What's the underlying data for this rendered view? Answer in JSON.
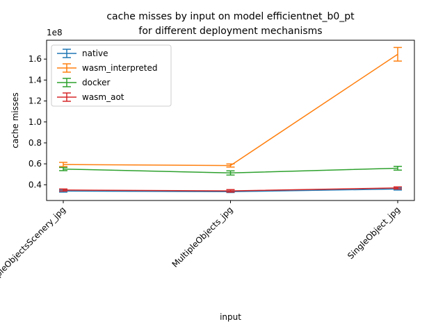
{
  "chart_data": {
    "type": "line",
    "title_line1": "cache misses by input on model efficientnet_b0_pt",
    "title_line2": "for different deployment mechanisms",
    "xlabel": "input",
    "ylabel": "cache misses",
    "scale_label": "1e8",
    "categories": [
      "MultipleObjectsScenery_jpg",
      "MultipleObjects_jpg",
      "SingleObject_jpg"
    ],
    "y_scale": 100000000,
    "ylim": [
      0.25,
      1.78
    ],
    "yticks": [
      0.4,
      0.6,
      0.8,
      1.0,
      1.2,
      1.4,
      1.6
    ],
    "ytick_labels": [
      "0.4",
      "0.6",
      "0.8",
      "1.0",
      "1.2",
      "1.4",
      "1.6"
    ],
    "grid": false,
    "legend_position": "upper-left",
    "series": [
      {
        "name": "native",
        "color": "#1f77b4",
        "values": [
          0.34,
          0.334,
          0.36
        ],
        "errors": [
          0.01,
          0.008,
          0.01
        ]
      },
      {
        "name": "wasm_interpreted",
        "color": "#ff7f0e",
        "values": [
          0.594,
          0.584,
          1.646
        ],
        "errors": [
          0.02,
          0.015,
          0.065
        ]
      },
      {
        "name": "docker",
        "color": "#2ca02c",
        "values": [
          0.55,
          0.513,
          0.558
        ],
        "errors": [
          0.015,
          0.02,
          0.018
        ]
      },
      {
        "name": "wasm_aot",
        "color": "#d62728",
        "values": [
          0.35,
          0.342,
          0.37
        ],
        "errors": [
          0.01,
          0.012,
          0.01
        ]
      }
    ]
  }
}
